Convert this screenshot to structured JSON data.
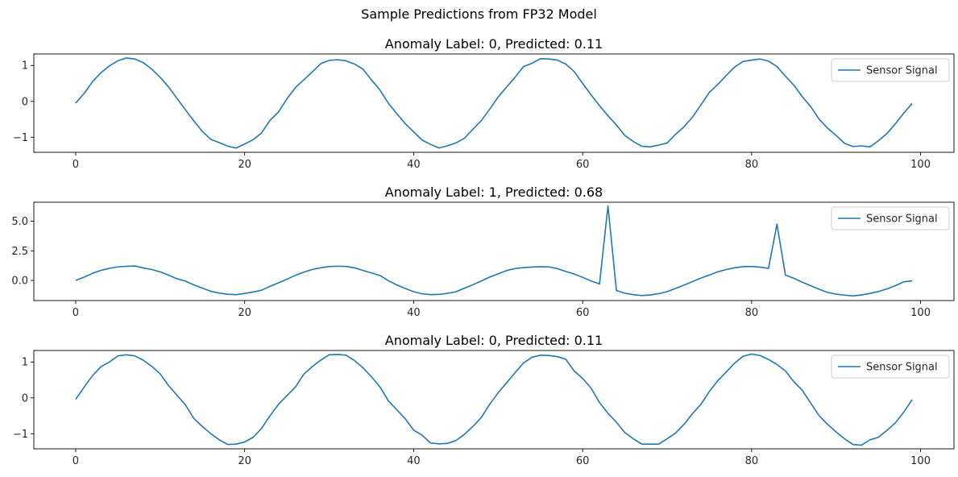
{
  "suptitle": "Sample Predictions from FP32 Model",
  "colors": {
    "line": "#1f77b4",
    "axes": "#000000",
    "legend_border": "#cccccc"
  },
  "chart_data": [
    {
      "type": "line",
      "title": "Anomaly Label: 0, Predicted: 0.11",
      "xlabel": "",
      "ylabel": "",
      "xlim": [
        -4.95,
        103.95
      ],
      "ylim": [
        -1.42,
        1.32
      ],
      "xticks": [
        0,
        20,
        40,
        60,
        80,
        100
      ],
      "xtick_labels": [
        "0",
        "20",
        "40",
        "60",
        "80",
        "100"
      ],
      "yticks": [
        -1,
        0,
        1
      ],
      "ytick_labels": [
        "−1",
        "0",
        "1"
      ],
      "grid": false,
      "legend": "top-right",
      "series": [
        {
          "name": "Sensor Signal",
          "x": [
            0,
            1,
            2,
            3,
            4,
            5,
            6,
            7,
            8,
            9,
            10,
            11,
            12,
            13,
            14,
            15,
            16,
            17,
            18,
            19,
            20,
            21,
            22,
            23,
            24,
            25,
            26,
            27,
            28,
            29,
            30,
            31,
            32,
            33,
            34,
            35,
            36,
            37,
            38,
            39,
            40,
            41,
            42,
            43,
            44,
            45,
            46,
            47,
            48,
            49,
            50,
            51,
            52,
            53,
            54,
            55,
            56,
            57,
            58,
            59,
            60,
            61,
            62,
            63,
            64,
            65,
            66,
            67,
            68,
            69,
            70,
            71,
            72,
            73,
            74,
            75,
            76,
            77,
            78,
            79,
            80,
            81,
            82,
            83,
            84,
            85,
            86,
            87,
            88,
            89,
            90,
            91,
            92,
            93,
            94,
            95,
            96,
            97,
            98,
            99
          ],
          "y": [
            -0.05,
            0.22,
            0.55,
            0.8,
            0.99,
            1.13,
            1.21,
            1.18,
            1.08,
            0.9,
            0.67,
            0.4,
            0.08,
            -0.24,
            -0.55,
            -0.84,
            -1.06,
            -1.15,
            -1.25,
            -1.3,
            -1.19,
            -1.07,
            -0.88,
            -0.53,
            -0.3,
            0.07,
            0.38,
            0.6,
            0.82,
            1.05,
            1.14,
            1.16,
            1.13,
            1.04,
            0.9,
            0.6,
            0.32,
            -0.05,
            -0.34,
            -0.62,
            -0.85,
            -1.08,
            -1.2,
            -1.3,
            -1.24,
            -1.16,
            -1.03,
            -0.78,
            -0.54,
            -0.22,
            0.12,
            0.4,
            0.67,
            0.97,
            1.06,
            1.19,
            1.18,
            1.15,
            1.04,
            0.83,
            0.5,
            0.18,
            -0.12,
            -0.4,
            -0.66,
            -0.95,
            -1.12,
            -1.25,
            -1.27,
            -1.22,
            -1.16,
            -0.92,
            -0.71,
            -0.44,
            -0.1,
            0.25,
            0.47,
            0.72,
            0.96,
            1.11,
            1.15,
            1.18,
            1.12,
            0.97,
            0.7,
            0.45,
            0.13,
            -0.15,
            -0.5,
            -0.75,
            -0.95,
            -1.17,
            -1.26,
            -1.24,
            -1.27,
            -1.1,
            -0.9,
            -0.63,
            -0.33,
            -0.06
          ]
        }
      ]
    },
    {
      "type": "line",
      "title": "Anomaly Label: 1, Predicted: 0.68",
      "xlabel": "",
      "ylabel": "",
      "xlim": [
        -4.95,
        103.95
      ],
      "ylim": [
        -1.7,
        6.6
      ],
      "xticks": [
        0,
        20,
        40,
        60,
        80,
        100
      ],
      "xtick_labels": [
        "0",
        "20",
        "40",
        "60",
        "80",
        "100"
      ],
      "yticks": [
        0.0,
        2.5,
        5.0
      ],
      "ytick_labels": [
        "0.0",
        "2.5",
        "5.0"
      ],
      "grid": false,
      "legend": "top-right",
      "series": [
        {
          "name": "Sensor Signal",
          "x": [
            0,
            1,
            2,
            3,
            4,
            5,
            6,
            7,
            8,
            9,
            10,
            11,
            12,
            13,
            14,
            15,
            16,
            17,
            18,
            19,
            20,
            21,
            22,
            23,
            24,
            25,
            26,
            27,
            28,
            29,
            30,
            31,
            32,
            33,
            34,
            35,
            36,
            37,
            38,
            39,
            40,
            41,
            42,
            43,
            44,
            45,
            46,
            47,
            48,
            49,
            50,
            51,
            52,
            53,
            54,
            55,
            56,
            57,
            58,
            59,
            60,
            61,
            62,
            63,
            64,
            65,
            66,
            67,
            68,
            69,
            70,
            71,
            72,
            73,
            74,
            75,
            76,
            77,
            78,
            79,
            80,
            81,
            82,
            83,
            84,
            85,
            86,
            87,
            88,
            89,
            90,
            91,
            92,
            93,
            94,
            95,
            96,
            97,
            98,
            99
          ],
          "y": [
            0.0,
            0.27,
            0.6,
            0.85,
            1.02,
            1.14,
            1.19,
            1.22,
            1.05,
            0.92,
            0.72,
            0.44,
            0.14,
            -0.06,
            -0.38,
            -0.65,
            -0.92,
            -1.07,
            -1.17,
            -1.2,
            -1.1,
            -0.98,
            -0.83,
            -0.5,
            -0.2,
            0.1,
            0.43,
            0.7,
            0.92,
            1.07,
            1.17,
            1.2,
            1.18,
            1.06,
            0.84,
            0.63,
            0.42,
            -0.02,
            -0.38,
            -0.68,
            -0.95,
            -1.13,
            -1.2,
            -1.18,
            -1.09,
            -0.96,
            -0.66,
            -0.37,
            -0.05,
            0.28,
            0.55,
            0.83,
            1.0,
            1.08,
            1.13,
            1.15,
            1.14,
            1.0,
            0.76,
            0.54,
            0.26,
            -0.05,
            -0.3,
            6.3,
            -0.85,
            -1.08,
            -1.2,
            -1.28,
            -1.23,
            -1.12,
            -0.95,
            -0.67,
            -0.4,
            -0.1,
            0.2,
            0.45,
            0.73,
            0.92,
            1.07,
            1.16,
            1.18,
            1.12,
            1.02,
            4.75,
            0.45,
            0.18,
            -0.15,
            -0.45,
            -0.75,
            -1.02,
            -1.16,
            -1.24,
            -1.31,
            -1.23,
            -1.1,
            -0.94,
            -0.72,
            -0.45,
            -0.12,
            -0.04
          ]
        }
      ]
    },
    {
      "type": "line",
      "title": "Anomaly Label: 0, Predicted: 0.11",
      "xlabel": "",
      "ylabel": "",
      "xlim": [
        -4.95,
        103.95
      ],
      "ylim": [
        -1.42,
        1.32
      ],
      "xticks": [
        0,
        20,
        40,
        60,
        80,
        100
      ],
      "xtick_labels": [
        "0",
        "20",
        "40",
        "60",
        "80",
        "100"
      ],
      "yticks": [
        -1,
        0,
        1
      ],
      "ytick_labels": [
        "−1",
        "0",
        "1"
      ],
      "grid": false,
      "legend": "top-right",
      "series": [
        {
          "name": "Sensor Signal",
          "x": [
            0,
            1,
            2,
            3,
            4,
            5,
            6,
            7,
            8,
            9,
            10,
            11,
            12,
            13,
            14,
            15,
            16,
            17,
            18,
            19,
            20,
            21,
            22,
            23,
            24,
            25,
            26,
            27,
            28,
            29,
            30,
            31,
            32,
            33,
            34,
            35,
            36,
            37,
            38,
            39,
            40,
            41,
            42,
            43,
            44,
            45,
            46,
            47,
            48,
            49,
            50,
            51,
            52,
            53,
            54,
            55,
            56,
            57,
            58,
            59,
            60,
            61,
            62,
            63,
            64,
            65,
            66,
            67,
            68,
            69,
            70,
            71,
            72,
            73,
            74,
            75,
            76,
            77,
            78,
            79,
            80,
            81,
            82,
            83,
            84,
            85,
            86,
            87,
            88,
            89,
            90,
            91,
            92,
            93,
            94,
            95,
            96,
            97,
            98,
            99
          ],
          "y": [
            -0.04,
            0.3,
            0.62,
            0.87,
            1.0,
            1.17,
            1.2,
            1.17,
            1.05,
            0.88,
            0.67,
            0.34,
            0.07,
            -0.2,
            -0.58,
            -0.8,
            -1.0,
            -1.17,
            -1.3,
            -1.29,
            -1.23,
            -1.1,
            -0.85,
            -0.5,
            -0.18,
            0.06,
            0.3,
            0.66,
            0.87,
            1.05,
            1.2,
            1.21,
            1.19,
            1.04,
            0.84,
            0.59,
            0.31,
            -0.08,
            -0.33,
            -0.58,
            -0.9,
            -1.04,
            -1.26,
            -1.28,
            -1.27,
            -1.19,
            -1.02,
            -0.8,
            -0.55,
            -0.18,
            0.14,
            0.42,
            0.7,
            0.97,
            1.13,
            1.19,
            1.18,
            1.15,
            1.08,
            0.75,
            0.54,
            0.27,
            -0.13,
            -0.43,
            -0.68,
            -0.97,
            -1.14,
            -1.29,
            -1.29,
            -1.29,
            -1.14,
            -0.98,
            -0.74,
            -0.44,
            -0.18,
            0.18,
            0.48,
            0.72,
            0.97,
            1.16,
            1.22,
            1.18,
            1.07,
            0.93,
            0.75,
            0.45,
            0.21,
            -0.15,
            -0.5,
            -0.74,
            -0.95,
            -1.14,
            -1.3,
            -1.32,
            -1.17,
            -1.1,
            -0.91,
            -0.7,
            -0.4,
            -0.05
          ]
        }
      ]
    }
  ]
}
